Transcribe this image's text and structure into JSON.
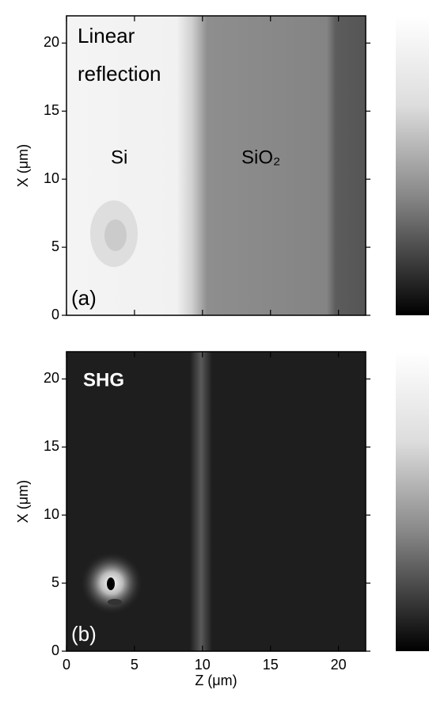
{
  "chart_data": [
    {
      "type": "image",
      "xlim": [
        0,
        22
      ],
      "ylim": [
        0,
        22
      ],
      "xticks": [
        0,
        5,
        10,
        15,
        20
      ],
      "yticks": [
        0,
        5,
        10,
        15,
        20
      ],
      "xtick_labels": false,
      "ylabel": "X (μm)",
      "annotations": [
        "Linear",
        "reflection",
        "Si",
        "SiO₂",
        "(a)"
      ]
    },
    {
      "type": "image",
      "xlim": [
        0,
        22
      ],
      "ylim": [
        0,
        22
      ],
      "xticks": [
        0,
        5,
        10,
        15,
        20
      ],
      "yticks": [
        0,
        5,
        10,
        15,
        20
      ],
      "xtick_labels": true,
      "ylabel": "X (μm)",
      "xlabel": "Z (μm)",
      "annotations": [
        "SHG",
        "(b)"
      ]
    }
  ]
}
